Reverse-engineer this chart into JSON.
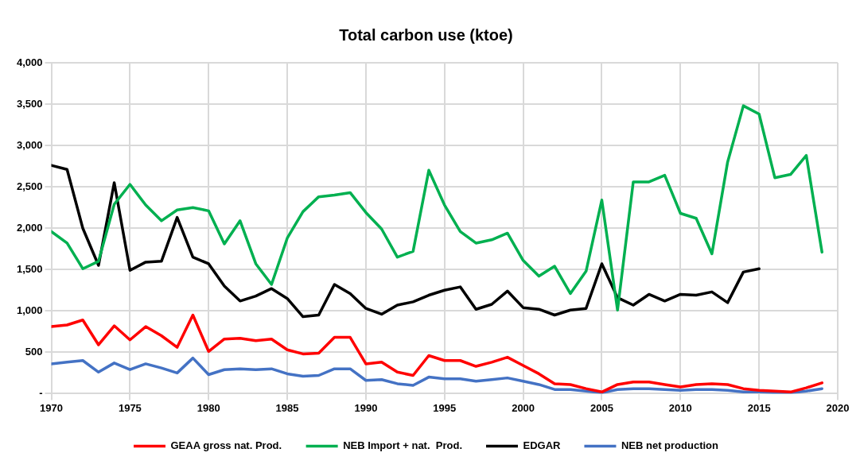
{
  "chart_data": {
    "type": "line",
    "title": "Total carbon use (ktoe)",
    "x": [
      1970,
      1971,
      1972,
      1973,
      1974,
      1975,
      1976,
      1977,
      1978,
      1979,
      1980,
      1981,
      1982,
      1983,
      1984,
      1985,
      1986,
      1987,
      1988,
      1989,
      1990,
      1991,
      1992,
      1993,
      1994,
      1995,
      1996,
      1997,
      1998,
      1999,
      2000,
      2001,
      2002,
      2003,
      2004,
      2005,
      2006,
      2007,
      2008,
      2009,
      2010,
      2011,
      2012,
      2013,
      2014,
      2015,
      2016,
      2017,
      2018,
      2019
    ],
    "series": [
      {
        "name": "GEAA gross nat. Prod.",
        "color": "#ff0000",
        "values": [
          810,
          830,
          890,
          590,
          820,
          650,
          810,
          700,
          560,
          950,
          510,
          660,
          670,
          640,
          660,
          530,
          480,
          490,
          680,
          680,
          360,
          380,
          260,
          220,
          460,
          400,
          400,
          330,
          380,
          440,
          340,
          240,
          120,
          110,
          60,
          20,
          110,
          140,
          140,
          110,
          80,
          110,
          120,
          110,
          60,
          40,
          30,
          20,
          70,
          130
        ]
      },
      {
        "name": "NEB Import + nat.  Prod.",
        "color": "#00b050",
        "values": [
          1960,
          1820,
          1510,
          1600,
          2290,
          2530,
          2280,
          2090,
          2220,
          2250,
          2210,
          1810,
          2090,
          1570,
          1320,
          1880,
          2200,
          2380,
          2400,
          2430,
          2190,
          1990,
          1650,
          1720,
          2700,
          2280,
          1960,
          1820,
          1860,
          1940,
          1610,
          1420,
          1540,
          1210,
          1480,
          2340,
          1010,
          2560,
          2560,
          2640,
          2180,
          2120,
          1690,
          2800,
          3480,
          3380,
          2610,
          2650,
          2880,
          1710
        ]
      },
      {
        "name": "EDGAR",
        "color": "#000000",
        "values": [
          2760,
          2710,
          2000,
          1550,
          2550,
          1490,
          1590,
          1600,
          2130,
          1650,
          1570,
          1300,
          1120,
          1180,
          1270,
          1150,
          930,
          950,
          1320,
          1210,
          1030,
          960,
          1070,
          1110,
          1190,
          1250,
          1290,
          1020,
          1080,
          1240,
          1040,
          1020,
          950,
          1010,
          1030,
          1570,
          1160,
          1070,
          1200,
          1120,
          1200,
          1190,
          1230,
          1100,
          1470,
          1510,
          null,
          null,
          null,
          null
        ]
      },
      {
        "name": "NEB net production",
        "color": "#4472c4",
        "values": [
          360,
          380,
          400,
          260,
          370,
          290,
          360,
          310,
          250,
          430,
          230,
          290,
          300,
          290,
          300,
          240,
          210,
          220,
          300,
          300,
          160,
          170,
          120,
          100,
          200,
          180,
          180,
          150,
          170,
          190,
          150,
          110,
          50,
          50,
          30,
          10,
          50,
          60,
          60,
          50,
          40,
          50,
          50,
          40,
          20,
          20,
          10,
          10,
          30,
          60
        ]
      }
    ],
    "xlim": [
      1970,
      2020
    ],
    "xticks": [
      1970,
      1975,
      1980,
      1985,
      1990,
      1995,
      2000,
      2005,
      2010,
      2015,
      2020
    ],
    "ylim": [
      0,
      4000
    ],
    "yticks": [
      {
        "value": 0,
        "label": "-"
      },
      {
        "value": 500,
        "label": "500"
      },
      {
        "value": 1000,
        "label": "1,000"
      },
      {
        "value": 1500,
        "label": "1,500"
      },
      {
        "value": 2000,
        "label": "2,000"
      },
      {
        "value": 2500,
        "label": "2,500"
      },
      {
        "value": 3000,
        "label": "3,000"
      },
      {
        "value": 3500,
        "label": "3,500"
      },
      {
        "value": 4000,
        "label": "4,000"
      }
    ],
    "grid": true,
    "legend": "bottom",
    "marker": "none",
    "line_style": "solid"
  }
}
